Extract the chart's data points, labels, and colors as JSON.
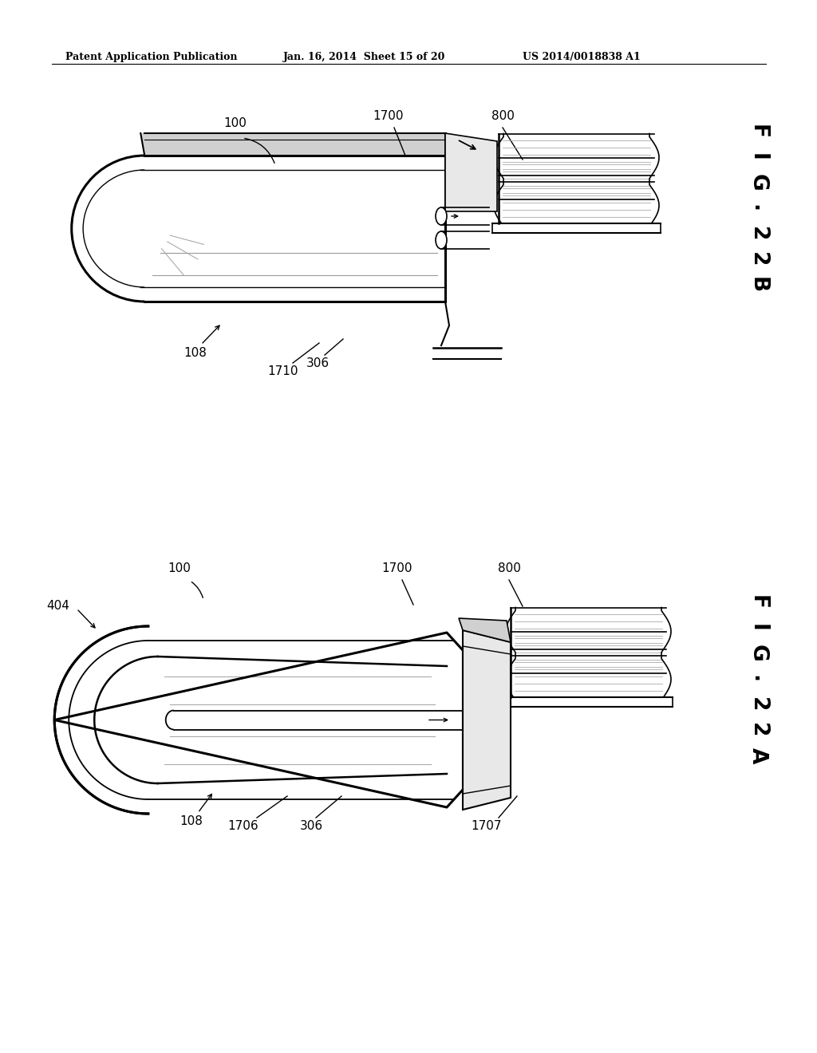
{
  "bg_color": "#ffffff",
  "line_color": "#000000",
  "header_left": "Patent Application Publication",
  "header_mid": "Jan. 16, 2014  Sheet 15 of 20",
  "header_right": "US 2014/0018838 A1"
}
